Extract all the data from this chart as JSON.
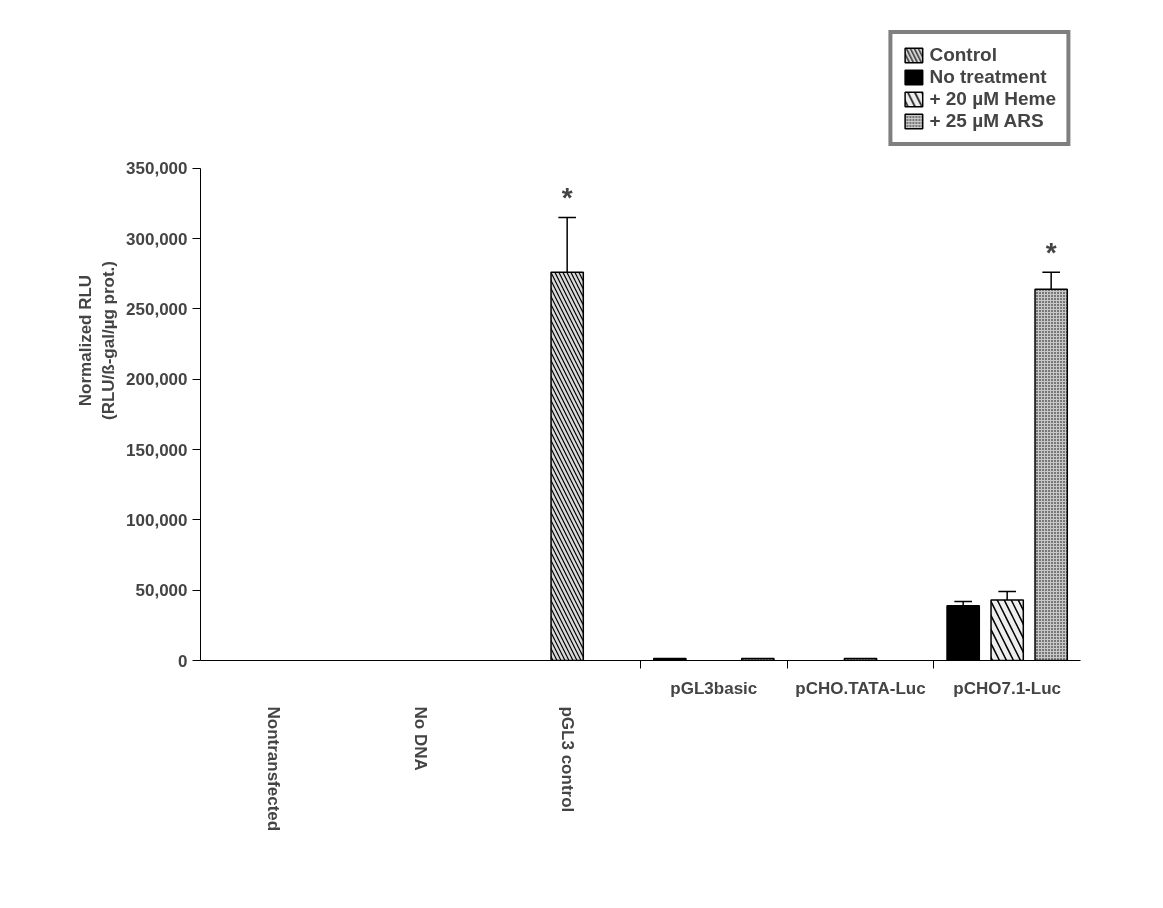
{
  "chart_data": {
    "type": "bar",
    "ylabel": "Normalized RLU\n(RLU/ß-gal/µg prot.)",
    "categories": [
      "Nontransfected",
      "No DNA",
      "pGL3 control",
      "pGL3basic",
      "pCHO.TATA-Luc",
      "pCHO7.1-Luc"
    ],
    "series": [
      {
        "name": "Control",
        "color": "#d9d9d9",
        "values": [
          null,
          null,
          276000,
          null,
          null,
          null
        ],
        "errors": [
          null,
          null,
          39000,
          null,
          null,
          null
        ]
      },
      {
        "name": "No treatment",
        "color": "#000000",
        "values": [
          null,
          null,
          null,
          1500,
          null,
          39000
        ],
        "errors": [
          null,
          null,
          null,
          null,
          null,
          3000
        ]
      },
      {
        "name": "+ 20 µM Heme",
        "color": "#eeeeee",
        "values": [
          null,
          null,
          null,
          null,
          null,
          43000
        ],
        "errors": [
          null,
          null,
          null,
          null,
          null,
          6000
        ]
      },
      {
        "name": "+ 25 µM ARS",
        "color": "#c8c8c8",
        "values": [
          null,
          null,
          null,
          1500,
          1500,
          264000
        ],
        "errors": [
          null,
          null,
          null,
          null,
          null,
          12000
        ]
      }
    ],
    "ylim": [
      0,
      350000
    ],
    "yticks": [
      {
        "value": 0,
        "label": "0"
      },
      {
        "value": 50000,
        "label": "50,000"
      },
      {
        "value": 100000,
        "label": "100,000"
      },
      {
        "value": 150000,
        "label": "150,000"
      },
      {
        "value": 200000,
        "label": "200,000"
      },
      {
        "value": 250000,
        "label": "250,000"
      },
      {
        "value": 300000,
        "label": "300,000"
      },
      {
        "value": 350000,
        "label": "350,000"
      }
    ],
    "annotations": [
      {
        "text": "*",
        "x": "pGL3 control",
        "y": 276000
      },
      "*"
    ],
    "legend": "top right",
    "grid": false
  }
}
